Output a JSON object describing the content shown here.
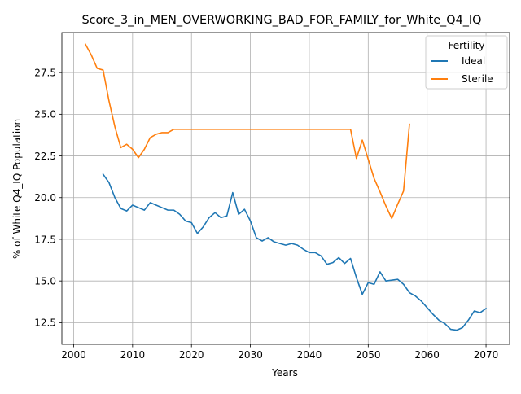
{
  "chart_data": {
    "type": "line",
    "title": "Score_3_in_MEN_OVERWORKING_BAD_FOR_FAMILY_for_White_Q4_IQ",
    "xlabel": "Years",
    "ylabel": "% of White Q4_IQ Population",
    "xlim": [
      1998,
      2074
    ],
    "ylim": [
      11.2,
      29.9
    ],
    "xticks": [
      2000,
      2010,
      2020,
      2030,
      2040,
      2050,
      2060,
      2070
    ],
    "yticks": [
      12.5,
      15.0,
      17.5,
      20.0,
      22.5,
      25.0,
      27.5
    ],
    "ytick_labels": [
      "12.5",
      "15.0",
      "17.5",
      "20.0",
      "22.5",
      "25.0",
      "27.5"
    ],
    "grid": true,
    "legend": {
      "title": "Fertility",
      "position": "top-right"
    },
    "series": [
      {
        "name": "Ideal",
        "color": "#1f77b4",
        "x": [
          2005,
          2006,
          2007,
          2008,
          2009,
          2010,
          2011,
          2012,
          2013,
          2014,
          2015,
          2016,
          2017,
          2018,
          2019,
          2020,
          2021,
          2022,
          2023,
          2024,
          2025,
          2026,
          2027,
          2028,
          2029,
          2030,
          2031,
          2032,
          2033,
          2034,
          2035,
          2036,
          2037,
          2038,
          2039,
          2040,
          2041,
          2042,
          2043,
          2044,
          2045,
          2046,
          2047,
          2048,
          2049,
          2050,
          2051,
          2052,
          2053,
          2054,
          2055,
          2056,
          2057,
          2058,
          2059,
          2060,
          2061,
          2062,
          2063,
          2064,
          2065,
          2066,
          2067,
          2068,
          2069,
          2070
        ],
        "values": [
          21.4,
          20.9,
          20.0,
          19.35,
          19.2,
          19.55,
          19.4,
          19.25,
          19.7,
          19.55,
          19.4,
          19.25,
          19.25,
          19.0,
          18.6,
          18.5,
          17.85,
          18.25,
          18.8,
          19.1,
          18.8,
          18.9,
          20.3,
          19.0,
          19.3,
          18.6,
          17.6,
          17.4,
          17.6,
          17.35,
          17.25,
          17.15,
          17.25,
          17.15,
          16.9,
          16.7,
          16.7,
          16.5,
          16.0,
          16.1,
          16.4,
          16.05,
          16.35,
          15.2,
          14.2,
          14.9,
          14.8,
          15.55,
          15.0,
          15.05,
          15.1,
          14.8,
          14.3,
          14.1,
          13.8,
          13.4,
          13.0,
          12.65,
          12.45,
          12.1,
          12.05,
          12.2,
          12.65,
          13.2,
          13.1,
          13.35
        ]
      },
      {
        "name": "Sterile",
        "color": "#ff7f0e",
        "x": [
          2002,
          2003,
          2004,
          2005,
          2006,
          2007,
          2008,
          2009,
          2010,
          2011,
          2012,
          2013,
          2014,
          2015,
          2016,
          2017,
          2018,
          2019,
          2020,
          2021,
          2022,
          2023,
          2024,
          2025,
          2026,
          2027,
          2028,
          2029,
          2030,
          2031,
          2032,
          2033,
          2034,
          2035,
          2036,
          2037,
          2038,
          2039,
          2040,
          2041,
          2042,
          2043,
          2044,
          2045,
          2046,
          2047,
          2048,
          2049,
          2050,
          2051,
          2052,
          2053,
          2054,
          2055,
          2056,
          2057
        ],
        "values": [
          29.2,
          28.55,
          27.75,
          27.65,
          25.8,
          24.25,
          23.0,
          23.2,
          22.9,
          22.4,
          22.9,
          23.6,
          23.8,
          23.9,
          23.9,
          24.1,
          24.1,
          24.1,
          24.1,
          24.1,
          24.1,
          24.1,
          24.1,
          24.1,
          24.1,
          24.1,
          24.1,
          24.1,
          24.1,
          24.1,
          24.1,
          24.1,
          24.1,
          24.1,
          24.1,
          24.1,
          24.1,
          24.1,
          24.1,
          24.1,
          24.1,
          24.1,
          24.1,
          24.1,
          24.1,
          24.1,
          22.35,
          23.45,
          22.3,
          21.15,
          20.35,
          19.5,
          18.75,
          19.6,
          20.4,
          24.4
        ]
      }
    ]
  }
}
